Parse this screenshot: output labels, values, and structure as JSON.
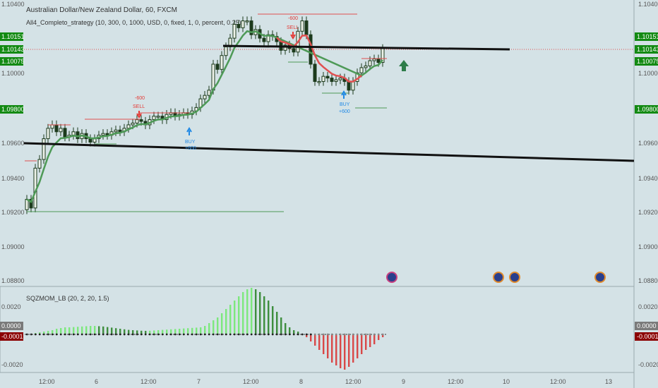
{
  "header": {
    "title": "Australian Dollar/New Zealand Dollar, 60, FXCM",
    "strategy": "All4_Completo_strategy (10, 300, 0, 1000, USD, 0, fixed, 1, 0, percent, 0.25)"
  },
  "indicator": {
    "label": "SQZMOM_LB (20, 2, 20, 1.5)"
  },
  "colors": {
    "background": "#d4e2e6",
    "candle_body": "#1c3a1c",
    "ma_green": "#4e9a57",
    "ma_red": "#e05050",
    "mom_bright_green": "#7de87d",
    "mom_dark_green": "#3e8e3e",
    "mom_red": "#d94848",
    "price_badge_green": "#138a13",
    "neg_badge": "#8b0000",
    "buy_blue": "#1e88e5",
    "sell_red": "#e53935"
  },
  "chart_data": [
    {
      "type": "candlestick",
      "title": "Australian Dollar/New Zealand Dollar, 60, FXCM",
      "yaxis_ticks": [
        "1.10400",
        "1.10000",
        "1.09600",
        "1.09400",
        "1.09200",
        "1.09000",
        "1.08800"
      ],
      "extra_ticks": [
        "1.09800"
      ],
      "price_labels": [
        {
          "value": "1.10151",
          "color": "#138a13"
        },
        {
          "value": "1.10143",
          "color": "#138a13"
        },
        {
          "value": "1.10075",
          "color": "#138a13"
        },
        {
          "value": "1.09800",
          "color": "#138a13"
        }
      ],
      "xaxis_ticks": [
        "12:00",
        "6",
        "12:00",
        "7",
        "12:00",
        "8",
        "12:00",
        "9",
        "12:00",
        "10",
        "12:00",
        "13"
      ],
      "ylim": [
        1.0878,
        1.1043
      ],
      "trades": [
        {
          "type": "SELL",
          "label": "SELL",
          "amount": "-600"
        },
        {
          "type": "BUY",
          "label": "BUY",
          "amount": "+600"
        },
        {
          "type": "SELL",
          "label": "SELL",
          "amount": "-600"
        },
        {
          "type": "BUY",
          "label": "BUY",
          "amount": "+600"
        }
      ],
      "close_series": [
        1.0927,
        1.0922,
        1.0945,
        1.095,
        1.0962,
        1.0968,
        1.097,
        1.0966,
        1.0968,
        1.0963,
        1.0964,
        1.0966,
        1.0962,
        1.0965,
        1.0962,
        1.096,
        1.0962,
        1.0964,
        1.0965,
        1.0964,
        1.0966,
        1.0967,
        1.0966,
        1.0968,
        1.097,
        1.0971,
        1.0973,
        1.0972,
        1.097,
        1.0973,
        1.0975,
        1.0975,
        1.0973,
        1.0976,
        1.0977,
        1.0975,
        1.0976,
        1.0977,
        1.0976,
        1.0978,
        1.098,
        1.0985,
        1.0987,
        1.099,
        1.1005,
        1.1002,
        1.101,
        1.1015,
        1.102,
        1.1028,
        1.1026,
        1.103,
        1.103,
        1.1022,
        1.1025,
        1.102,
        1.1018,
        1.1022,
        1.1021,
        1.1018,
        1.1013,
        1.1016,
        1.1014,
        1.1012,
        1.1024,
        1.103,
        1.1022,
        1.1005,
        1.0995,
        1.0995,
        1.0998,
        1.0997,
        1.0995,
        1.0996,
        1.0997,
        1.0995,
        1.099,
        1.0995,
        1.1,
        1.1003,
        1.1004,
        1.1007,
        1.1008,
        1.1006,
        1.1014
      ]
    },
    {
      "type": "bar",
      "title": "SQZMOM_LB (20, 2, 20, 1.5)",
      "yaxis_ticks": [
        "0.0020",
        "0.0000",
        "-0.0001",
        "-0.0020"
      ],
      "ylim": [
        -0.0026,
        0.0035
      ],
      "values": [
        2e-05,
        5e-05,
        0.0001,
        0.00015,
        0.0002,
        0.00025,
        0.0003,
        0.0004,
        0.00045,
        0.0005,
        0.0005,
        0.00052,
        0.00054,
        0.00056,
        0.00058,
        0.0006,
        0.0006,
        0.00058,
        0.00056,
        0.00052,
        0.00048,
        0.00044,
        0.0004,
        0.00036,
        0.00032,
        0.0003,
        0.00028,
        0.00026,
        0.00025,
        0.00026,
        0.00028,
        0.0003,
        0.00032,
        0.00034,
        0.00036,
        0.00038,
        0.0004,
        0.00042,
        0.00044,
        0.00046,
        0.00048,
        0.0005,
        0.0006,
        0.0008,
        0.001,
        0.0012,
        0.0015,
        0.0018,
        0.0021,
        0.0024,
        0.0027,
        0.003,
        0.0032,
        0.0033,
        0.0032,
        0.003,
        0.0027,
        0.0024,
        0.002,
        0.0016,
        0.0012,
        0.0008,
        0.0005,
        0.0003,
        0.0002,
        5e-05,
        -0.0002,
        -0.0005,
        -0.0008,
        -0.0011,
        -0.0014,
        -0.0017,
        -0.002,
        -0.0022,
        -0.0024,
        -0.0025,
        -0.0023,
        -0.002,
        -0.0017,
        -0.0014,
        -0.0011,
        -0.0009,
        -0.0007,
        -0.0004,
        -0.0002
      ]
    }
  ]
}
